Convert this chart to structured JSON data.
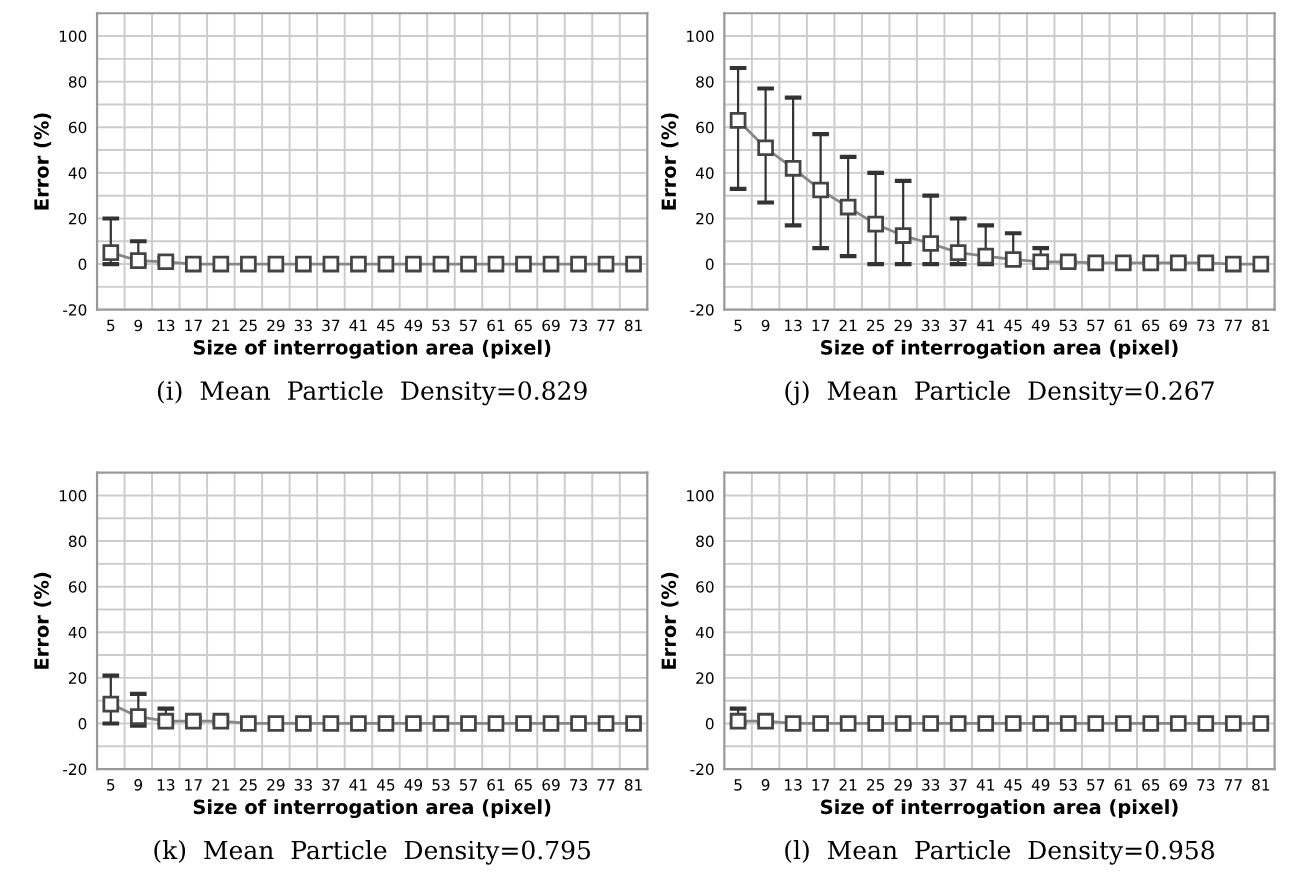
{
  "chart_data": [
    {
      "type": "line",
      "title": "(i)  Mean  Particle  Density=0.829",
      "xlabel": "Size of interrogation area (pixel)",
      "ylabel": "Error (%)",
      "categories": [
        "5",
        "9",
        "13",
        "17",
        "21",
        "25",
        "29",
        "33",
        "37",
        "41",
        "45",
        "49",
        "53",
        "57",
        "61",
        "65",
        "69",
        "73",
        "77",
        "81"
      ],
      "ylim": [
        -20,
        110
      ],
      "yticks": [
        -20,
        {
          "value": -10,
          "label": null
        },
        0,
        {
          "value": 10,
          "label": null
        },
        20,
        {
          "value": 30,
          "label": null
        },
        40,
        {
          "value": 50,
          "label": null
        },
        60,
        {
          "value": 70,
          "label": null
        },
        80,
        {
          "value": 90,
          "label": null
        },
        100
      ],
      "grid": true,
      "marker": "square",
      "line_style": "solid",
      "series": [
        {
          "color": "#888888",
          "values": [
            5,
            1.5,
            1,
            0,
            0,
            0,
            0,
            0,
            0,
            0,
            0,
            0,
            0,
            0,
            0,
            0,
            0,
            0,
            0,
            0
          ],
          "errors": [
            [
              0,
              20
            ],
            [
              0,
              10
            ],
            [
              0,
              2.5
            ],
            null,
            null,
            null,
            null,
            null,
            null,
            null,
            null,
            null,
            null,
            null,
            null,
            null,
            null,
            null,
            null,
            null
          ]
        }
      ]
    },
    {
      "type": "line",
      "title": "(j)  Mean  Particle  Density=0.267",
      "xlabel": "Size of interrogation area (pixel)",
      "ylabel": "Error (%)",
      "categories": [
        "5",
        "9",
        "13",
        "17",
        "21",
        "25",
        "29",
        "33",
        "37",
        "41",
        "45",
        "49",
        "53",
        "57",
        "61",
        "65",
        "69",
        "73",
        "77",
        "81"
      ],
      "ylim": [
        -20,
        110
      ],
      "yticks": [
        -20,
        {
          "value": -10,
          "label": null
        },
        0,
        {
          "value": 10,
          "label": null
        },
        20,
        {
          "value": 30,
          "label": null
        },
        40,
        {
          "value": 50,
          "label": null
        },
        60,
        {
          "value": 70,
          "label": null
        },
        80,
        {
          "value": 90,
          "label": null
        },
        100
      ],
      "grid": true,
      "marker": "square",
      "line_style": "solid",
      "series": [
        {
          "color": "#888888",
          "values": [
            63,
            51,
            42,
            32.5,
            25,
            17.5,
            12.5,
            9,
            5,
            3.5,
            2,
            1,
            1,
            0.5,
            0.5,
            0.5,
            0.5,
            0.5,
            0,
            0
          ],
          "errors": [
            [
              33,
              86
            ],
            [
              27,
              77
            ],
            [
              17,
              73
            ],
            [
              7,
              57
            ],
            [
              3.5,
              47
            ],
            [
              0,
              40
            ],
            [
              0,
              36.5
            ],
            [
              0,
              30
            ],
            [
              0,
              20
            ],
            [
              0,
              17
            ],
            [
              0,
              13.5
            ],
            [
              0,
              7
            ],
            [
              0,
              2
            ],
            [
              0,
              2
            ],
            [
              0,
              2
            ],
            [
              0,
              2
            ],
            [
              0,
              2
            ],
            [
              0,
              2.5
            ],
            null,
            null
          ]
        }
      ]
    },
    {
      "type": "line",
      "title": "(k)  Mean  Particle  Density=0.795",
      "xlabel": "Size of interrogation area (pixel)",
      "ylabel": "Error (%)",
      "categories": [
        "5",
        "9",
        "13",
        "17",
        "21",
        "25",
        "29",
        "33",
        "37",
        "41",
        "45",
        "49",
        "53",
        "57",
        "61",
        "65",
        "69",
        "73",
        "77",
        "81"
      ],
      "ylim": [
        -20,
        110
      ],
      "yticks": [
        -20,
        {
          "value": -10,
          "label": null
        },
        0,
        {
          "value": 10,
          "label": null
        },
        20,
        {
          "value": 30,
          "label": null
        },
        40,
        {
          "value": 50,
          "label": null
        },
        60,
        {
          "value": 70,
          "label": null
        },
        80,
        {
          "value": 90,
          "label": null
        },
        100
      ],
      "grid": true,
      "marker": "square",
      "line_style": "solid",
      "series": [
        {
          "color": "#888888",
          "values": [
            8.5,
            3,
            1,
            1,
            1,
            0,
            0,
            0,
            0,
            0,
            0,
            0,
            0,
            0,
            0,
            0,
            0,
            0,
            0,
            0
          ],
          "errors": [
            [
              0,
              21
            ],
            [
              -1,
              13
            ],
            [
              0,
              6.5
            ],
            [
              0,
              2.5
            ],
            [
              0,
              2.5
            ],
            null,
            null,
            null,
            null,
            null,
            null,
            null,
            null,
            null,
            null,
            null,
            null,
            null,
            null,
            null
          ]
        }
      ]
    },
    {
      "type": "line",
      "title": "(l)  Mean  Particle  Density=0.958",
      "xlabel": "Size of interrogation area (pixel)",
      "ylabel": "Error (%)",
      "categories": [
        "5",
        "9",
        "13",
        "17",
        "21",
        "25",
        "29",
        "33",
        "37",
        "41",
        "45",
        "49",
        "53",
        "57",
        "61",
        "65",
        "69",
        "73",
        "77",
        "81"
      ],
      "ylim": [
        -20,
        110
      ],
      "yticks": [
        -20,
        {
          "value": -10,
          "label": null
        },
        0,
        {
          "value": 10,
          "label": null
        },
        20,
        {
          "value": 30,
          "label": null
        },
        40,
        {
          "value": 50,
          "label": null
        },
        60,
        {
          "value": 70,
          "label": null
        },
        80,
        {
          "value": 90,
          "label": null
        },
        100
      ],
      "grid": true,
      "marker": "square",
      "line_style": "solid",
      "series": [
        {
          "color": "#888888",
          "values": [
            1,
            1,
            0,
            0,
            0,
            0,
            0,
            0,
            0,
            0,
            0,
            0,
            0,
            0,
            0,
            0,
            0,
            0,
            0,
            0
          ],
          "errors": [
            [
              0,
              6.5
            ],
            [
              0,
              3
            ],
            null,
            null,
            null,
            null,
            null,
            null,
            null,
            null,
            null,
            null,
            null,
            null,
            null,
            null,
            null,
            null,
            null,
            null
          ]
        }
      ]
    }
  ]
}
